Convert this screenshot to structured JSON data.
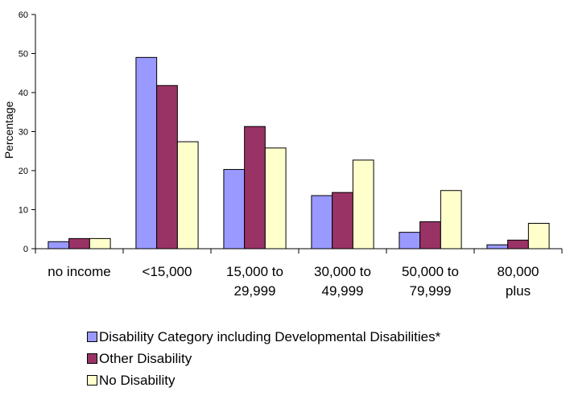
{
  "chart_data": {
    "type": "bar",
    "title": "",
    "xlabel": "",
    "ylabel": "Percentage",
    "ylim": [
      0,
      60
    ],
    "yticks": [
      0,
      10,
      20,
      30,
      40,
      50,
      60
    ],
    "grid": false,
    "legend_position": "bottom",
    "categories": [
      [
        "no income"
      ],
      [
        "<15,000"
      ],
      [
        "15,000 to",
        "29,999"
      ],
      [
        "30,000 to",
        "49,999"
      ],
      [
        "50,000 to",
        "79,999"
      ],
      [
        "80,000",
        "plus"
      ]
    ],
    "series": [
      {
        "name": "Disability Category including Developmental Disabilities*",
        "color": "#9999ff",
        "values": [
          1.8,
          49.0,
          20.3,
          13.6,
          4.2,
          1.0
        ]
      },
      {
        "name": "Other Disability",
        "color": "#993366",
        "values": [
          2.6,
          41.8,
          31.3,
          14.4,
          6.9,
          2.2
        ]
      },
      {
        "name": "No Disability",
        "color": "#ffffcc",
        "values": [
          2.6,
          27.4,
          25.8,
          22.7,
          14.9,
          6.5
        ]
      }
    ]
  }
}
